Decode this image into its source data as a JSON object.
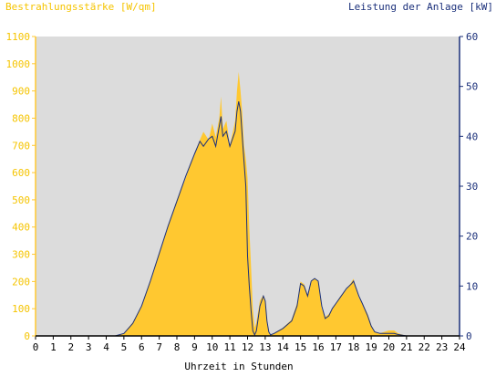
{
  "chart_data": {
    "type": "area",
    "title": "",
    "ylabel_left": "Bestrahlungsstärke [W/qm]",
    "ylabel_right": "Leistung der Anlage [kW]",
    "xlabel": "Uhrzeit in Stunden",
    "xlim": [
      0,
      24
    ],
    "ylim_left": [
      0,
      1100
    ],
    "ylim_right": [
      0,
      60
    ],
    "x_ticks": [
      "0",
      "1",
      "2",
      "3",
      "4",
      "5",
      "6",
      "7",
      "8",
      "9",
      "10",
      "11",
      "12",
      "13",
      "14",
      "15",
      "16",
      "17",
      "18",
      "19",
      "20",
      "21",
      "22",
      "23",
      "24"
    ],
    "y_ticks_left": [
      "0",
      "100",
      "200",
      "300",
      "400",
      "500",
      "600",
      "700",
      "800",
      "900",
      "1000",
      "1100"
    ],
    "y_ticks_right": [
      "0",
      "10",
      "20",
      "30",
      "40",
      "50",
      "60"
    ],
    "grid": false,
    "colors": {
      "irradiance": "#ffc830",
      "power": "#1a2f7a",
      "plot_background": "#dcdcdc"
    },
    "series": [
      {
        "name": "Bestrahlungsstärke [W/qm]",
        "axis": "left",
        "style": "area",
        "x": [
          0,
          4.5,
          5,
          5.5,
          6,
          6.5,
          7,
          7.5,
          8,
          8.5,
          9,
          9.3,
          9.5,
          9.8,
          10,
          10.2,
          10.4,
          10.5,
          10.6,
          10.8,
          11,
          11.2,
          11.3,
          11.4,
          11.5,
          11.6,
          11.7,
          11.8,
          11.9,
          12,
          12.1,
          12.2,
          12.3,
          12.4,
          12.5,
          12.7,
          12.9,
          13,
          13.1,
          13.2,
          13.3,
          13.5,
          14,
          14.5,
          14.8,
          15,
          15.2,
          15.4,
          15.6,
          15.8,
          16,
          16.2,
          16.4,
          16.6,
          16.8,
          17,
          17.3,
          17.6,
          17.9,
          18,
          18.1,
          18.3,
          18.5,
          18.8,
          19,
          19.2,
          19.5,
          20,
          20.3,
          20.5,
          21,
          24
        ],
        "y": [
          0,
          0,
          10,
          50,
          110,
          200,
          300,
          400,
          500,
          580,
          670,
          720,
          750,
          720,
          780,
          730,
          800,
          880,
          760,
          790,
          700,
          760,
          790,
          900,
          970,
          900,
          820,
          700,
          650,
          580,
          400,
          250,
          100,
          30,
          50,
          130,
          150,
          120,
          60,
          15,
          5,
          10,
          30,
          60,
          120,
          200,
          190,
          150,
          200,
          210,
          200,
          100,
          70,
          80,
          100,
          120,
          150,
          170,
          200,
          210,
          180,
          140,
          120,
          80,
          40,
          15,
          10,
          20,
          20,
          10,
          0,
          0
        ]
      },
      {
        "name": "Leistung der Anlage [kW]",
        "axis": "right",
        "style": "line",
        "x": [
          0,
          4.5,
          5,
          5.5,
          6,
          6.5,
          7,
          7.5,
          8,
          8.5,
          9,
          9.3,
          9.5,
          9.8,
          10,
          10.2,
          10.4,
          10.5,
          10.6,
          10.8,
          11,
          11.2,
          11.3,
          11.4,
          11.5,
          11.6,
          11.7,
          11.8,
          11.9,
          12,
          12.1,
          12.2,
          12.3,
          12.4,
          12.5,
          12.7,
          12.9,
          13,
          13.1,
          13.2,
          13.3,
          13.5,
          14,
          14.5,
          14.8,
          15,
          15.2,
          15.4,
          15.6,
          15.8,
          16,
          16.2,
          16.4,
          16.6,
          16.8,
          17,
          17.3,
          17.6,
          17.9,
          18,
          18.1,
          18.3,
          18.5,
          18.8,
          19,
          19.2,
          19.5,
          20,
          20.3,
          20.5,
          21,
          24
        ],
        "y": [
          0,
          0,
          0.5,
          2.5,
          6,
          11,
          16.5,
          22,
          27,
          32,
          36.5,
          39,
          38,
          39.5,
          40,
          38,
          42,
          44,
          40,
          41,
          38,
          40,
          41,
          45,
          47,
          45,
          40,
          35,
          30,
          16,
          10,
          5,
          1,
          0.2,
          1,
          6,
          8,
          7,
          3,
          0.8,
          0.2,
          0.5,
          1.5,
          3,
          6,
          10.5,
          10,
          8,
          11,
          11.5,
          11,
          6,
          3.5,
          4,
          5.5,
          6.5,
          8,
          9.5,
          10.5,
          11,
          10,
          8,
          6.5,
          4,
          2,
          0.8,
          0.5,
          0.5,
          0.5,
          0.3,
          0,
          0
        ]
      }
    ]
  }
}
